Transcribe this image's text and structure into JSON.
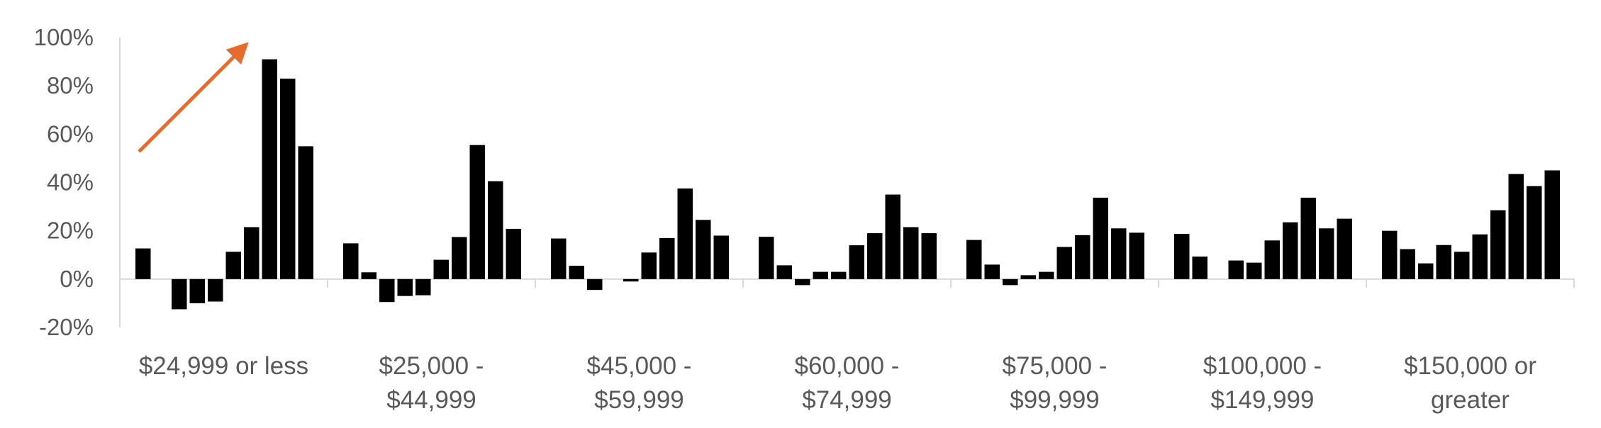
{
  "chart_data": {
    "type": "bar",
    "title": "",
    "xlabel": "",
    "ylabel": "",
    "ylim": [
      -20,
      100
    ],
    "yticks": [
      "100%",
      "80%",
      "60%",
      "40%",
      "20%",
      "0%",
      "-20%"
    ],
    "grid": false,
    "legend": "none",
    "categories": [
      [
        "$24,999 or less"
      ],
      [
        "$25,000 -",
        "$44,999"
      ],
      [
        "$45,000 -",
        "$59,999"
      ],
      [
        "$60,000 -",
        "$74,999"
      ],
      [
        "$75,000 -",
        "$99,999"
      ],
      [
        "$100,000 -",
        "$149,999"
      ],
      [
        "$150,000 or",
        "greater"
      ]
    ],
    "groups": [
      [
        12.7,
        0,
        -12.5,
        -10,
        -9.3,
        11.3,
        21.5,
        91,
        83,
        55
      ],
      [
        14.8,
        2.8,
        -9.5,
        -7,
        -6.7,
        8,
        17.4,
        55.5,
        40.5,
        20.8
      ],
      [
        16.8,
        5.5,
        -4.5,
        0,
        -1,
        11,
        17,
        37.5,
        24.5,
        18
      ],
      [
        17.5,
        5.7,
        -2.5,
        3,
        3,
        14,
        19,
        35,
        21.5,
        19
      ],
      [
        16.2,
        6,
        -2.5,
        1.6,
        3,
        13.3,
        18.2,
        33.7,
        21,
        19.2
      ],
      [
        18.7,
        9.3,
        0,
        7.7,
        6.8,
        16,
        23.5,
        33.7,
        21,
        25
      ],
      [
        20,
        12.4,
        6.5,
        14.1,
        11.3,
        18.5,
        28.5,
        43.5,
        38.5,
        45
      ]
    ],
    "annotation": {
      "type": "arrow",
      "color": "#E46C2E"
    },
    "colors": {
      "bar": "#000000",
      "axis": "#D9D9D9",
      "text": "#595959"
    }
  }
}
